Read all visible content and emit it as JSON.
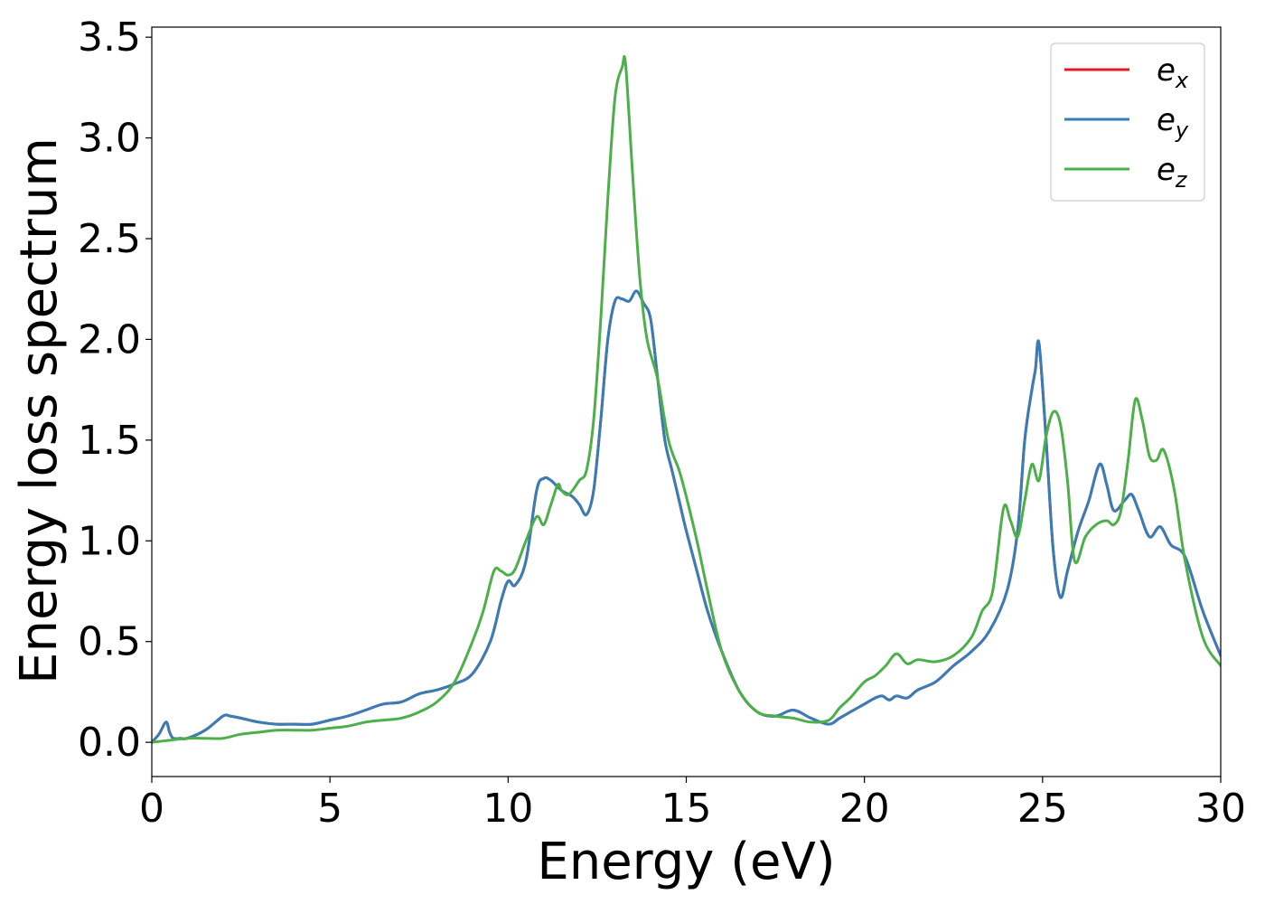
{
  "chart_data": {
    "type": "line",
    "xlabel": "Energy (eV)",
    "ylabel": "Energy loss spectrum",
    "xlim": [
      0,
      30
    ],
    "ylim": [
      -0.17,
      3.55
    ],
    "xticks": [
      0,
      5,
      10,
      15,
      20,
      25,
      30
    ],
    "yticks": [
      0.0,
      0.5,
      1.0,
      1.5,
      2.0,
      2.5,
      3.0,
      3.5
    ],
    "xtick_labels": [
      "0",
      "5",
      "10",
      "15",
      "20",
      "25",
      "30"
    ],
    "ytick_labels": [
      "0.0",
      "0.5",
      "1.0",
      "1.5",
      "2.0",
      "2.5",
      "3.0",
      "3.5"
    ],
    "grid": false,
    "legend_position": "top-right",
    "series": [
      {
        "name": "e_x",
        "legend_base": "e",
        "legend_sub": "x",
        "color": "#e41a1c",
        "x": [
          0.0,
          0.2,
          0.4,
          0.5,
          0.6,
          0.8,
          1.0,
          1.5,
          2.0,
          2.2,
          2.5,
          3.0,
          3.5,
          4.0,
          4.5,
          5.0,
          5.5,
          6.0,
          6.5,
          7.0,
          7.5,
          8.0,
          8.5,
          9.0,
          9.5,
          9.8,
          10.0,
          10.2,
          10.5,
          10.8,
          11.0,
          11.2,
          11.5,
          11.8,
          12.0,
          12.2,
          12.4,
          12.6,
          12.8,
          13.0,
          13.2,
          13.4,
          13.6,
          13.8,
          14.0,
          14.2,
          14.4,
          14.6,
          14.8,
          15.0,
          15.3,
          15.6,
          16.0,
          16.5,
          17.0,
          17.5,
          18.0,
          18.5,
          19.0,
          19.3,
          19.6,
          20.0,
          20.3,
          20.5,
          20.7,
          20.9,
          21.2,
          21.5,
          22.0,
          22.5,
          23.0,
          23.5,
          24.0,
          24.3,
          24.5,
          24.7,
          24.8,
          24.9,
          25.1,
          25.3,
          25.5,
          25.7,
          26.0,
          26.3,
          26.6,
          26.8,
          27.0,
          27.3,
          27.5,
          27.7,
          28.0,
          28.3,
          28.6,
          29.0,
          29.5,
          30.0
        ],
        "values": [
          0.0,
          0.04,
          0.1,
          0.05,
          0.02,
          0.02,
          0.02,
          0.06,
          0.13,
          0.13,
          0.12,
          0.1,
          0.09,
          0.09,
          0.09,
          0.11,
          0.13,
          0.16,
          0.19,
          0.2,
          0.24,
          0.26,
          0.29,
          0.34,
          0.5,
          0.7,
          0.8,
          0.78,
          0.9,
          1.25,
          1.31,
          1.3,
          1.25,
          1.22,
          1.18,
          1.13,
          1.25,
          1.6,
          2.0,
          2.19,
          2.2,
          2.19,
          2.24,
          2.18,
          2.1,
          1.8,
          1.5,
          1.35,
          1.2,
          1.05,
          0.85,
          0.65,
          0.45,
          0.25,
          0.15,
          0.13,
          0.16,
          0.12,
          0.09,
          0.12,
          0.15,
          0.19,
          0.22,
          0.23,
          0.21,
          0.23,
          0.22,
          0.26,
          0.3,
          0.38,
          0.45,
          0.55,
          0.75,
          1.05,
          1.5,
          1.75,
          1.85,
          1.98,
          1.5,
          0.95,
          0.72,
          0.85,
          1.05,
          1.2,
          1.38,
          1.28,
          1.15,
          1.2,
          1.23,
          1.15,
          1.02,
          1.07,
          0.98,
          0.92,
          0.65,
          0.43
        ]
      },
      {
        "name": "e_y",
        "legend_base": "e",
        "legend_sub": "y",
        "color": "#377eb8",
        "x": [
          0.0,
          0.2,
          0.4,
          0.5,
          0.6,
          0.8,
          1.0,
          1.5,
          2.0,
          2.2,
          2.5,
          3.0,
          3.5,
          4.0,
          4.5,
          5.0,
          5.5,
          6.0,
          6.5,
          7.0,
          7.5,
          8.0,
          8.5,
          9.0,
          9.5,
          9.8,
          10.0,
          10.2,
          10.5,
          10.8,
          11.0,
          11.2,
          11.5,
          11.8,
          12.0,
          12.2,
          12.4,
          12.6,
          12.8,
          13.0,
          13.2,
          13.4,
          13.6,
          13.8,
          14.0,
          14.2,
          14.4,
          14.6,
          14.8,
          15.0,
          15.3,
          15.6,
          16.0,
          16.5,
          17.0,
          17.5,
          18.0,
          18.5,
          19.0,
          19.3,
          19.6,
          20.0,
          20.3,
          20.5,
          20.7,
          20.9,
          21.2,
          21.5,
          22.0,
          22.5,
          23.0,
          23.5,
          24.0,
          24.3,
          24.5,
          24.7,
          24.8,
          24.9,
          25.1,
          25.3,
          25.5,
          25.7,
          26.0,
          26.3,
          26.6,
          26.8,
          27.0,
          27.3,
          27.5,
          27.7,
          28.0,
          28.3,
          28.6,
          29.0,
          29.5,
          30.0
        ],
        "values": [
          0.0,
          0.04,
          0.1,
          0.05,
          0.02,
          0.02,
          0.02,
          0.06,
          0.13,
          0.13,
          0.12,
          0.1,
          0.09,
          0.09,
          0.09,
          0.11,
          0.13,
          0.16,
          0.19,
          0.2,
          0.24,
          0.26,
          0.29,
          0.34,
          0.5,
          0.7,
          0.8,
          0.78,
          0.9,
          1.25,
          1.31,
          1.3,
          1.25,
          1.22,
          1.18,
          1.13,
          1.25,
          1.6,
          2.0,
          2.19,
          2.2,
          2.19,
          2.24,
          2.18,
          2.1,
          1.8,
          1.5,
          1.35,
          1.2,
          1.05,
          0.85,
          0.65,
          0.45,
          0.25,
          0.15,
          0.13,
          0.16,
          0.12,
          0.09,
          0.12,
          0.15,
          0.19,
          0.22,
          0.23,
          0.21,
          0.23,
          0.22,
          0.26,
          0.3,
          0.38,
          0.45,
          0.55,
          0.75,
          1.05,
          1.5,
          1.75,
          1.85,
          1.98,
          1.5,
          0.95,
          0.72,
          0.85,
          1.05,
          1.2,
          1.38,
          1.28,
          1.15,
          1.2,
          1.23,
          1.15,
          1.02,
          1.07,
          0.98,
          0.92,
          0.65,
          0.43
        ]
      },
      {
        "name": "e_z",
        "legend_base": "e",
        "legend_sub": "z",
        "color": "#4daf4a",
        "x": [
          0.0,
          0.5,
          1.0,
          1.5,
          2.0,
          2.5,
          3.0,
          3.5,
          4.0,
          4.5,
          5.0,
          5.5,
          6.0,
          6.5,
          7.0,
          7.5,
          8.0,
          8.5,
          9.0,
          9.3,
          9.6,
          9.8,
          10.0,
          10.2,
          10.5,
          10.8,
          11.0,
          11.2,
          11.4,
          11.5,
          11.7,
          12.0,
          12.2,
          12.4,
          12.6,
          12.8,
          13.0,
          13.2,
          13.3,
          13.5,
          13.7,
          13.9,
          14.2,
          14.5,
          14.8,
          15.0,
          15.3,
          15.6,
          16.0,
          16.5,
          17.0,
          17.5,
          18.0,
          18.5,
          19.0,
          19.3,
          19.6,
          20.0,
          20.3,
          20.6,
          20.9,
          21.2,
          21.5,
          22.0,
          22.5,
          23.0,
          23.3,
          23.6,
          23.9,
          24.1,
          24.3,
          24.5,
          24.7,
          24.9,
          25.1,
          25.3,
          25.5,
          25.7,
          25.9,
          26.2,
          26.5,
          26.8,
          27.0,
          27.2,
          27.4,
          27.6,
          27.8,
          28.0,
          28.2,
          28.4,
          28.7,
          29.0,
          29.5,
          30.0
        ],
        "values": [
          0.0,
          0.01,
          0.02,
          0.02,
          0.02,
          0.04,
          0.05,
          0.06,
          0.06,
          0.06,
          0.07,
          0.08,
          0.1,
          0.11,
          0.12,
          0.15,
          0.2,
          0.3,
          0.5,
          0.65,
          0.85,
          0.85,
          0.83,
          0.86,
          1.0,
          1.12,
          1.08,
          1.18,
          1.28,
          1.25,
          1.23,
          1.3,
          1.35,
          1.6,
          2.1,
          2.7,
          3.2,
          3.35,
          3.36,
          2.8,
          2.3,
          2.0,
          1.8,
          1.5,
          1.35,
          1.22,
          1.0,
          0.75,
          0.45,
          0.25,
          0.15,
          0.13,
          0.12,
          0.1,
          0.11,
          0.17,
          0.22,
          0.3,
          0.33,
          0.38,
          0.44,
          0.39,
          0.41,
          0.4,
          0.43,
          0.52,
          0.65,
          0.75,
          1.16,
          1.1,
          1.02,
          1.2,
          1.38,
          1.3,
          1.52,
          1.64,
          1.58,
          1.3,
          0.9,
          1.02,
          1.08,
          1.1,
          1.08,
          1.15,
          1.4,
          1.7,
          1.6,
          1.42,
          1.4,
          1.45,
          1.25,
          0.9,
          0.52,
          0.38
        ]
      }
    ]
  }
}
